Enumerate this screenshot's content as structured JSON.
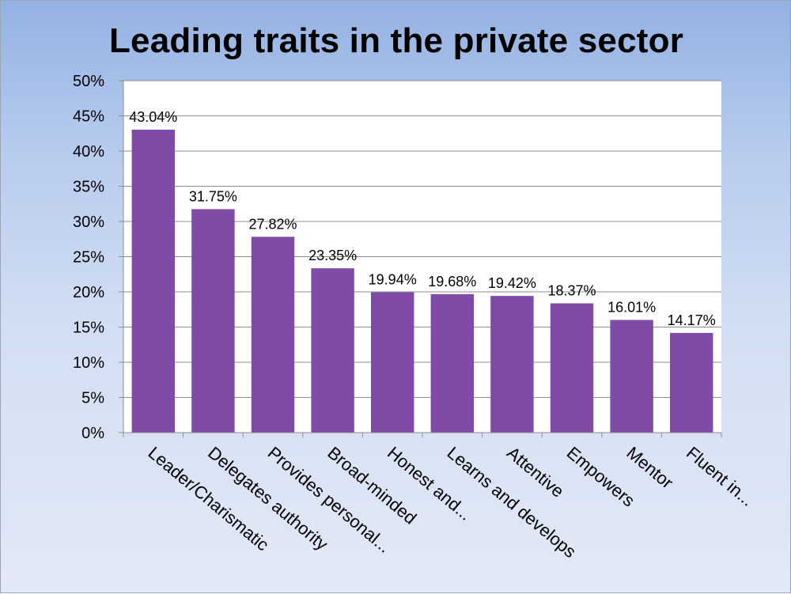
{
  "chart_data": {
    "type": "bar",
    "title": "Leading traits in the private sector",
    "categories": [
      "Leader/Charismatic",
      "Delegates authority",
      "Provides personal...",
      "Broad-minded",
      "Honest and...",
      "Learns and develops",
      "Attentive",
      "Empowers",
      "Mentor",
      "Fluent in..."
    ],
    "values": [
      43.04,
      31.75,
      27.82,
      23.35,
      19.94,
      19.68,
      19.42,
      18.37,
      16.01,
      14.17
    ],
    "data_labels": [
      "43.04%",
      "31.75%",
      "27.82%",
      "23.35%",
      "19.94%",
      "19.68%",
      "19.42%",
      "18.37%",
      "16.01%",
      "14.17%"
    ],
    "yticks": [
      0,
      5,
      10,
      15,
      20,
      25,
      30,
      35,
      40,
      45,
      50
    ],
    "ytick_labels": [
      "0%",
      "5%",
      "10%",
      "15%",
      "20%",
      "25%",
      "30%",
      "35%",
      "40%",
      "45%",
      "50%"
    ],
    "ylim": [
      0,
      50
    ],
    "grid": true,
    "legend": "none",
    "bar_color": "#7f4ba6"
  }
}
